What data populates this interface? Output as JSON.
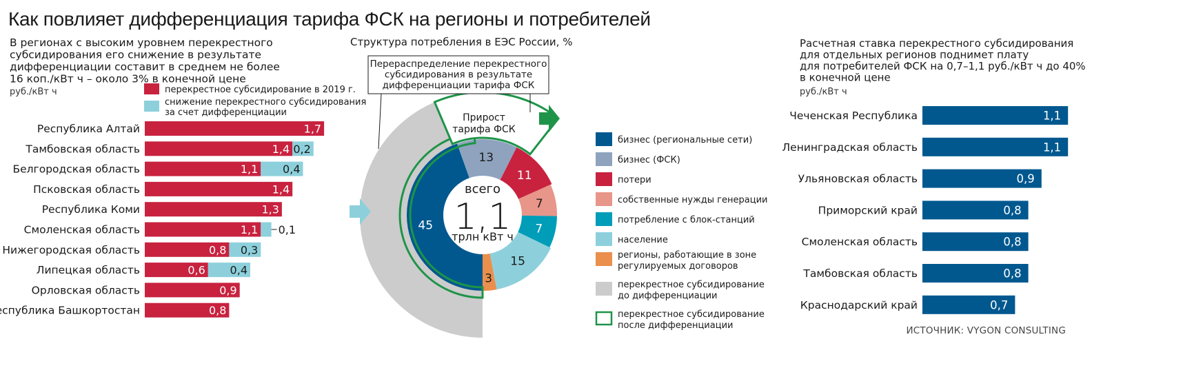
{
  "page_title": "Как повлияет дифференциация тарифа ФСК на регионы и потребителей",
  "source": "ИСТОЧНИК: VYGON CONSULTING",
  "colors": {
    "red": "#c8223f",
    "lightblue": "#8dd0dc",
    "navy": "#00588f",
    "bluegray": "#8fa3bf",
    "pink": "#e8958a",
    "teal": "#009db9",
    "orange": "#ea8f4c",
    "gray": "#cccccc",
    "green": "#1e9448"
  },
  "chart_data": [
    {
      "type": "bar",
      "orientation": "horizontal",
      "stacked": true,
      "title": "В регионах с высоким уровнем перекрестного субсидирования его снижение в результате дифференциации составит в среднем не более 16 коп./кВт ч – около 3% в конечной цене",
      "title_lines": [
        "В регионах с высоким уровнем перекрестного",
        "субсидирования его снижение в результате",
        "дифференциации составит в среднем не более",
        "16 коп./кВт ч – около 3% в конечной цене"
      ],
      "unit": "руб./кВт ч",
      "legend": [
        {
          "label": "перекрестное субсидирование в 2019 г.",
          "color": "#c8223f"
        },
        {
          "label": "снижение перекрестного субсидирования",
          "label2": "за счет дифференциации",
          "color": "#8dd0dc"
        }
      ],
      "categories": [
        "Республика Алтай",
        "Тамбовская область",
        "Белгородская область",
        "Псковская область",
        "Республика Коми",
        "Смоленская область",
        "Нижегородская область",
        "Липецкая область",
        "Орловская область",
        "Республика Башкортостан"
      ],
      "series": [
        {
          "name": "перекрестное субсидирование в 2019 г.",
          "values": [
            1.7,
            1.4,
            1.1,
            1.4,
            1.3,
            1.1,
            0.8,
            0.6,
            0.9,
            0.8
          ],
          "labels": [
            "1,7",
            "1,4",
            "1,1",
            "1,4",
            "1,3",
            "1,1",
            "0,8",
            "0,6",
            "0,9",
            "0,8"
          ]
        },
        {
          "name": "снижение перекрестного субсидирования за счет дифференциации",
          "values": [
            0,
            0.2,
            0.4,
            0,
            0,
            0.1,
            0.3,
            0.4,
            0,
            0
          ],
          "labels": [
            "",
            "0,2",
            "0,4",
            "",
            "",
            "0,1",
            "0,3",
            "0,4",
            "",
            ""
          ]
        }
      ]
    },
    {
      "type": "pie",
      "variant": "donut",
      "title": "Структура потребления в ЕЭС России, %",
      "center_lines": [
        "всего",
        "1,1",
        "трлн кВт ч"
      ],
      "callout_lines": [
        "Перераспределение перекрестного",
        "субсидирования в результате",
        "дифференциации тарифа ФСК"
      ],
      "growth_lines": [
        "Прирост",
        "тарифа ФСК"
      ],
      "slices": [
        {
          "label": "бизнес (региональные сети)",
          "value": 45,
          "text": "45",
          "color": "#00588f"
        },
        {
          "label": "бизнес (ФСК)",
          "value": 13,
          "text": "13",
          "color": "#8fa3bf"
        },
        {
          "label": "потери",
          "value": 11,
          "text": "11",
          "color": "#c8223f"
        },
        {
          "label": "собственные нужды генерации",
          "value": 7,
          "text": "7",
          "color": "#e8958a"
        },
        {
          "label": "потребление с блок-станций",
          "value": 7,
          "text": "7",
          "color": "#009db9"
        },
        {
          "label": "население",
          "value": 15,
          "text": "15",
          "color": "#8dd0dc"
        },
        {
          "label": "регионы, работающие в зоне регулируемых договоров",
          "value": 3,
          "text": "3",
          "color": "#ea8f4c"
        }
      ],
      "legend": [
        {
          "lines": [
            "бизнес (региональные сети)"
          ],
          "color": "#00588f",
          "style": "fill"
        },
        {
          "lines": [
            "бизнес (ФСК)"
          ],
          "color": "#8fa3bf",
          "style": "fill"
        },
        {
          "lines": [
            "потери"
          ],
          "color": "#c8223f",
          "style": "fill"
        },
        {
          "lines": [
            "собственные нужды генерации"
          ],
          "color": "#e8958a",
          "style": "fill"
        },
        {
          "lines": [
            "потребление с блок-станций"
          ],
          "color": "#009db9",
          "style": "fill"
        },
        {
          "lines": [
            "население"
          ],
          "color": "#8dd0dc",
          "style": "fill"
        },
        {
          "lines": [
            "регионы, работающие в зоне",
            "регулируемых договоров"
          ],
          "color": "#ea8f4c",
          "style": "fill"
        },
        {
          "lines": [
            "перекрестное субсидирование",
            "до дифференциации"
          ],
          "color": "#cccccc",
          "style": "fill"
        },
        {
          "lines": [
            "перекрестное субсидирование",
            "после дифференциации"
          ],
          "color": "#1e9448",
          "style": "outline"
        }
      ]
    },
    {
      "type": "bar",
      "orientation": "horizontal",
      "title": "Расчетная ставка перекрестного субсидирования для отдельных регионов поднимет плату для потребителей ФСК на 0,7–1,1 руб./кВт ч до 40% в конечной цене",
      "title_lines": [
        "Расчетная ставка перекрестного субсидирования",
        "для отдельных регионов поднимет плату",
        "для потребителей ФСК на 0,7–1,1 руб./кВт ч до 40%",
        "в конечной цене"
      ],
      "unit": "руб./кВт ч",
      "categories": [
        "Чеченская Республика",
        "Ленинградская область",
        "Ульяновская область",
        "Приморский край",
        "Смоленская область",
        "Тамбовская область",
        "Краснодарский край"
      ],
      "values": [
        1.1,
        1.1,
        0.9,
        0.8,
        0.8,
        0.8,
        0.7
      ],
      "labels": [
        "1,1",
        "1,1",
        "0,9",
        "0,8",
        "0,8",
        "0,8",
        "0,7"
      ],
      "color": "#00588f"
    }
  ]
}
